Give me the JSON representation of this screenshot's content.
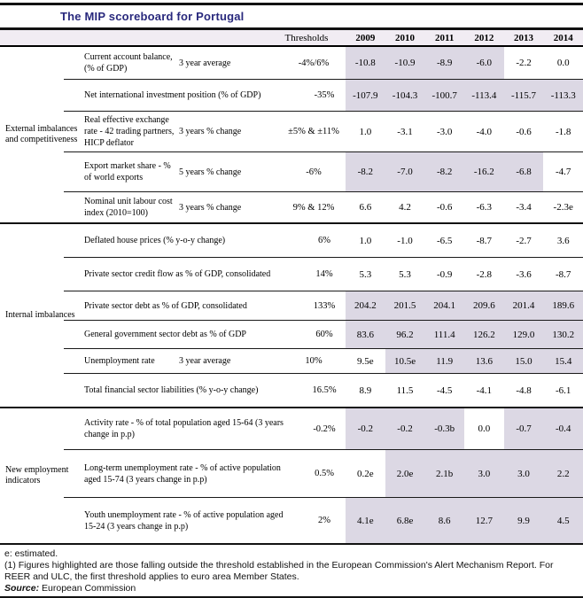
{
  "title": "The MIP scoreboard for Portugal",
  "colors": {
    "title_text": "#29297d",
    "highlight": "#dcd8e4",
    "header_band": "#f1ecf3",
    "rule": "#121212"
  },
  "columns": {
    "thresholds_label": "Thresholds",
    "years": [
      "2009",
      "2010",
      "2011",
      "2012",
      "2013",
      "2014"
    ]
  },
  "groups": [
    {
      "label": "External imbalances\nand competitiveness",
      "rows": [
        {
          "indicator": "Current account balance,\n(% of GDP)",
          "sublabel": "3 year average",
          "threshold": "-4%/6%",
          "values": [
            "-10.8",
            "-10.9",
            "-8.9",
            "-6.0",
            "-2.2",
            "0.0"
          ],
          "highlight": [
            true,
            true,
            true,
            true,
            false,
            false
          ]
        },
        {
          "indicator": "Net international investment position (% of GDP)",
          "sublabel": "",
          "threshold": "-35%",
          "values": [
            "-107.9",
            "-104.3",
            "-100.7",
            "-113.4",
            "-115.7",
            "-113.3"
          ],
          "highlight": [
            true,
            true,
            true,
            true,
            true,
            true
          ]
        },
        {
          "indicator": "Real effective exchange\nrate - 42 trading partners,\nHICP deflator",
          "sublabel": "3 years % change",
          "threshold": "±5% & ±11%",
          "values": [
            "1.0",
            "-3.1",
            "-3.0",
            "-4.0",
            "-0.6",
            "-1.8"
          ],
          "highlight": [
            false,
            false,
            false,
            false,
            false,
            false
          ]
        },
        {
          "indicator": "Export market share - %\nof world exports",
          "sublabel": "5 years % change",
          "threshold": "-6%",
          "values": [
            "-8.2",
            "-7.0",
            "-8.2",
            "-16.2",
            "-6.8",
            "-4.7"
          ],
          "highlight": [
            true,
            true,
            true,
            true,
            true,
            false
          ]
        },
        {
          "indicator": "Nominal unit labour cost\nindex (2010=100)",
          "sublabel": "3 years % change",
          "threshold": "9% & 12%",
          "values": [
            "6.6",
            "4.2",
            "-0.6",
            "-6.3",
            "-3.4",
            "-2.3e"
          ],
          "highlight": [
            false,
            false,
            false,
            false,
            false,
            false
          ]
        }
      ]
    },
    {
      "label": "Internal imbalances",
      "rows": [
        {
          "indicator": "Deflated house prices (% y-o-y change)",
          "sublabel": "",
          "threshold": "6%",
          "values": [
            "1.0",
            "-1.0",
            "-6.5",
            "-8.7",
            "-2.7",
            "3.6"
          ],
          "highlight": [
            false,
            false,
            false,
            false,
            false,
            false
          ]
        },
        {
          "indicator": "Private sector credit flow as % of GDP, consolidated",
          "sublabel": "",
          "threshold": "14%",
          "values": [
            "5.3",
            "5.3",
            "-0.9",
            "-2.8",
            "-3.6",
            "-8.7"
          ],
          "highlight": [
            false,
            false,
            false,
            false,
            false,
            false
          ]
        },
        {
          "indicator": "Private sector debt as % of GDP, consolidated",
          "sublabel": "",
          "threshold": "133%",
          "values": [
            "204.2",
            "201.5",
            "204.1",
            "209.6",
            "201.4",
            "189.6"
          ],
          "highlight": [
            true,
            true,
            true,
            true,
            true,
            true
          ]
        },
        {
          "indicator": "General government sector debt as % of GDP",
          "sublabel": "",
          "threshold": "60%",
          "values": [
            "83.6",
            "96.2",
            "111.4",
            "126.2",
            "129.0",
            "130.2"
          ],
          "highlight": [
            true,
            true,
            true,
            true,
            true,
            true
          ]
        },
        {
          "indicator": "Unemployment rate",
          "sublabel": "3 year average",
          "threshold": "10%",
          "values": [
            "9.5e",
            "10.5e",
            "11.9",
            "13.6",
            "15.0",
            "15.4"
          ],
          "highlight": [
            false,
            true,
            true,
            true,
            true,
            true
          ]
        },
        {
          "indicator": "Total financial sector liabilities (% y-o-y change)",
          "sublabel": "",
          "threshold": "16.5%",
          "values": [
            "8.9",
            "11.5",
            "-4.5",
            "-4.1",
            "-4.8",
            "-6.1"
          ],
          "highlight": [
            false,
            false,
            false,
            false,
            false,
            false
          ]
        }
      ]
    },
    {
      "label": "New employment\nindicators",
      "rows": [
        {
          "indicator": "Activity rate - % of total population aged 15-64 (3 years\nchange in p.p)",
          "sublabel": "",
          "threshold": "-0.2%",
          "values": [
            "-0.2",
            "-0.2",
            "-0.3b",
            "0.0",
            "-0.7",
            "-0.4"
          ],
          "highlight": [
            true,
            true,
            true,
            false,
            true,
            true
          ]
        },
        {
          "indicator": "Long-term unemployment rate - % of active population\naged 15-74 (3 years change in p.p)",
          "sublabel": "",
          "threshold": "0.5%",
          "values": [
            "0.2e",
            "2.0e",
            "2.1b",
            "3.0",
            "3.0",
            "2.2"
          ],
          "highlight": [
            false,
            true,
            true,
            true,
            true,
            true
          ]
        },
        {
          "indicator": "Youth unemployment rate - % of active population aged\n15-24 (3 years change in p.p)",
          "sublabel": "",
          "threshold": "2%",
          "values": [
            "4.1e",
            "6.8e",
            "8.6",
            "12.7",
            "9.9",
            "4.5"
          ],
          "highlight": [
            true,
            true,
            true,
            true,
            true,
            true
          ]
        }
      ]
    }
  ],
  "footnotes": {
    "estimated": "e: estimated.",
    "note1": "(1) Figures highlighted are those falling outside the threshold established in the European Commission's Alert Mechanism Report. For REER and ULC, the first threshold applies to euro area Member States.",
    "source_label": "Source:",
    "source_text": " European Commission"
  }
}
